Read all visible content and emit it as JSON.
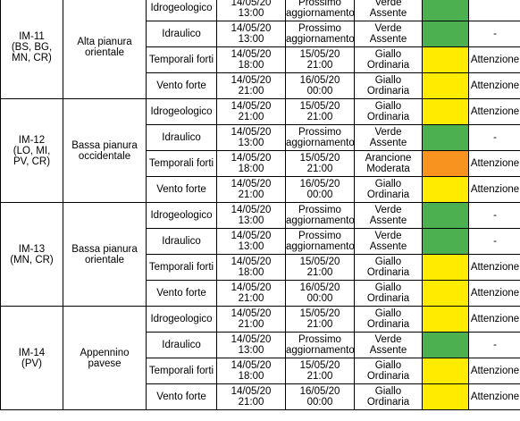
{
  "zones": [
    {
      "code": "IM-11\n(BS, BG,\nMN, CR)",
      "name": "Alta pianura\norientale",
      "rows": [
        {
          "risk": "Idrogeologico",
          "start": "14/05/20\n13:00",
          "end": "Prossimo\naggiornamento",
          "level": "Verde\nAssente",
          "color": "green",
          "note": ""
        },
        {
          "risk": "Idraulico",
          "start": "14/05/20\n13:00",
          "end": "Prossimo\naggiornamento",
          "level": "Verde\nAssente",
          "color": "green",
          "note": "-"
        },
        {
          "risk": "Temporali forti",
          "start": "14/05/20\n18:00",
          "end": "15/05/20\n21:00",
          "level": "Giallo\nOrdinaria",
          "color": "yellow",
          "note": "Attenzione"
        },
        {
          "risk": "Vento forte",
          "start": "14/05/20\n21:00",
          "end": "16/05/20\n00:00",
          "level": "Giallo\nOrdinaria",
          "color": "yellow",
          "note": "Attenzione"
        }
      ]
    },
    {
      "code": "IM-12\n(LO, MI,\nPV, CR)",
      "name": "Bassa pianura\noccidentale",
      "rows": [
        {
          "risk": "Idrogeologico",
          "start": "14/05/20\n21:00",
          "end": "15/05/20\n21:00",
          "level": "Giallo\nOrdinaria",
          "color": "yellow",
          "note": "Attenzione"
        },
        {
          "risk": "Idraulico",
          "start": "14/05/20\n13:00",
          "end": "Prossimo\naggiornamento",
          "level": "Verde\nAssente",
          "color": "green",
          "note": "-"
        },
        {
          "risk": "Temporali forti",
          "start": "14/05/20\n18:00",
          "end": "15/05/20\n21:00",
          "level": "Arancione\nModerata",
          "color": "orange",
          "note": "Attenzione"
        },
        {
          "risk": "Vento forte",
          "start": "14/05/20\n21:00",
          "end": "16/05/20\n00:00",
          "level": "Giallo\nOrdinaria",
          "color": "yellow",
          "note": "Attenzione"
        }
      ]
    },
    {
      "code": "IM-13\n(MN, CR)",
      "name": "Bassa pianura\norientale",
      "rows": [
        {
          "risk": "Idrogeologico",
          "start": "14/05/20\n13:00",
          "end": "Prossimo\naggiornamento",
          "level": "Verde\nAssente",
          "color": "green",
          "note": "-"
        },
        {
          "risk": "Idraulico",
          "start": "14/05/20\n13:00",
          "end": "Prossimo\naggiornamento",
          "level": "Verde\nAssente",
          "color": "green",
          "note": "-"
        },
        {
          "risk": "Temporali forti",
          "start": "14/05/20\n18:00",
          "end": "15/05/20\n21:00",
          "level": "Giallo\nOrdinaria",
          "color": "yellow",
          "note": "Attenzione"
        },
        {
          "risk": "Vento forte",
          "start": "14/05/20\n21:00",
          "end": "16/05/20\n00:00",
          "level": "Giallo\nOrdinaria",
          "color": "yellow",
          "note": "Attenzione"
        }
      ]
    },
    {
      "code": "IM-14\n(PV)",
      "name": "Appennino pavese",
      "rows": [
        {
          "risk": "Idrogeologico",
          "start": "14/05/20\n21:00",
          "end": "15/05/20\n21:00",
          "level": "Giallo\nOrdinaria",
          "color": "yellow",
          "note": "Attenzione"
        },
        {
          "risk": "Idraulico",
          "start": "14/05/20\n13:00",
          "end": "Prossimo\naggiornamento",
          "level": "Verde\nAssente",
          "color": "green",
          "note": "-"
        },
        {
          "risk": "Temporali forti",
          "start": "14/05/20\n18:00",
          "end": "15/05/20\n21:00",
          "level": "Giallo\nOrdinaria",
          "color": "yellow",
          "note": "Attenzione"
        },
        {
          "risk": "Vento forte",
          "start": "14/05/20\n21:00",
          "end": "16/05/20\n00:00",
          "level": "Giallo\nOrdinaria",
          "color": "yellow",
          "note": "Attenzione"
        }
      ]
    }
  ],
  "colors": {
    "green": "#4caf50",
    "yellow": "#ffeb00",
    "orange": "#f7931e"
  }
}
